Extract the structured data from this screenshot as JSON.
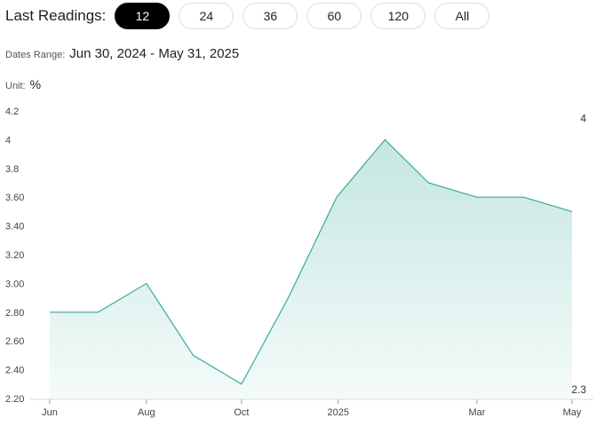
{
  "controls": {
    "label": "Last Readings:",
    "options": [
      "12",
      "24",
      "36",
      "60",
      "120",
      "All"
    ],
    "selected": "12"
  },
  "dates_range": {
    "label": "Dates Range:",
    "value": "Jun 30, 2024 - May 31, 2025"
  },
  "unit": {
    "label": "Unit:",
    "value": "%"
  },
  "colors": {
    "line": "#3aa99a",
    "area_top": "#c5e6e0",
    "area_bottom": "#f4fbfa",
    "axis": "#d8d8d8"
  },
  "chart_data": {
    "type": "area",
    "title": "",
    "xlabel": "",
    "ylabel": "",
    "x": [
      "2024-06-30",
      "2024-07-31",
      "2024-08-31",
      "2024-09-30",
      "2024-10-31",
      "2024-11-30",
      "2024-12-31",
      "2025-01-31",
      "2025-02-28",
      "2025-03-31",
      "2025-04-30",
      "2025-05-31"
    ],
    "series": [
      {
        "values": [
          2.8,
          2.8,
          3.0,
          2.5,
          2.3,
          2.9,
          3.6,
          4.0,
          3.7,
          3.6,
          3.6,
          3.5
        ]
      }
    ],
    "ylim": [
      2.2,
      4.2
    ],
    "y_ticks": [
      {
        "value": 2.2,
        "label": "2.20"
      },
      {
        "value": 2.4,
        "label": "2.40"
      },
      {
        "value": 2.6,
        "label": "2.60"
      },
      {
        "value": 2.8,
        "label": "2.80"
      },
      {
        "value": 3.0,
        "label": "3.00"
      },
      {
        "value": 3.2,
        "label": "3.20"
      },
      {
        "value": 3.4,
        "label": "3.40"
      },
      {
        "value": 3.6,
        "label": "3.60"
      },
      {
        "value": 3.8,
        "label": "3.8"
      },
      {
        "value": 4.0,
        "label": "4"
      },
      {
        "value": 4.2,
        "label": "4.2"
      }
    ],
    "x_ticks": [
      {
        "date": "2024-06-30",
        "label": "Jun"
      },
      {
        "date": "2024-08-31",
        "label": "Aug"
      },
      {
        "date": "2024-10-31",
        "label": "Oct"
      },
      {
        "date": "2025-01-01",
        "label": "2025"
      },
      {
        "date": "2025-03-31",
        "label": "Mar"
      },
      {
        "date": "2025-05-31",
        "label": "May"
      }
    ],
    "max_label": "4",
    "min_label": "2.3",
    "grid": false
  }
}
